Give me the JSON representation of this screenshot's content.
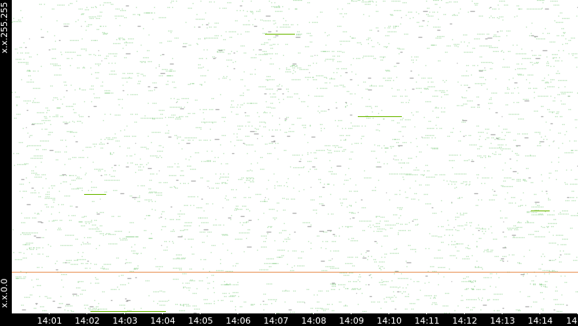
{
  "chart_data": {
    "type": "scatter",
    "title": "",
    "xlabel": "",
    "ylabel": "",
    "x_range": [
      "14:00",
      "14:15"
    ],
    "y_range": [
      "x.x.0.0",
      "x.x.255.255"
    ],
    "y_tick_labels": [
      "x.x.255.255",
      "x.x.0.0"
    ],
    "x_tick_labels": [
      "14:01",
      "14:02",
      "14:03",
      "14:04",
      "14:05",
      "14:06",
      "14:07",
      "14:08",
      "14:09",
      "14:10",
      "14:11",
      "14:12",
      "14:13",
      "14:14",
      "14"
    ],
    "grid": false,
    "legend": "none",
    "point_color": "#8fd18f",
    "highlight_color": "#6cb800",
    "persistent_line_color": "#e07020",
    "point_density": "dense random dots across full time/address range",
    "highlight_segments": [
      {
        "start": "14:00:00",
        "end": "14:15:00",
        "address": "x.x.33.236"
      },
      {
        "start": "14:06:42",
        "end": "14:07:30",
        "address": "x.x.228.123"
      },
      {
        "start": "14:01:55",
        "end": "14:02:30",
        "address": "x.x.97.96"
      },
      {
        "start": "14:09:10",
        "end": "14:10:20",
        "address": "x.x.161.0"
      },
      {
        "start": "14:13:45",
        "end": "14:14:15",
        "address": "x.x.84.0"
      },
      {
        "start": "14:02:05",
        "end": "14:04:05",
        "address": "x.x.2.0"
      }
    ]
  }
}
